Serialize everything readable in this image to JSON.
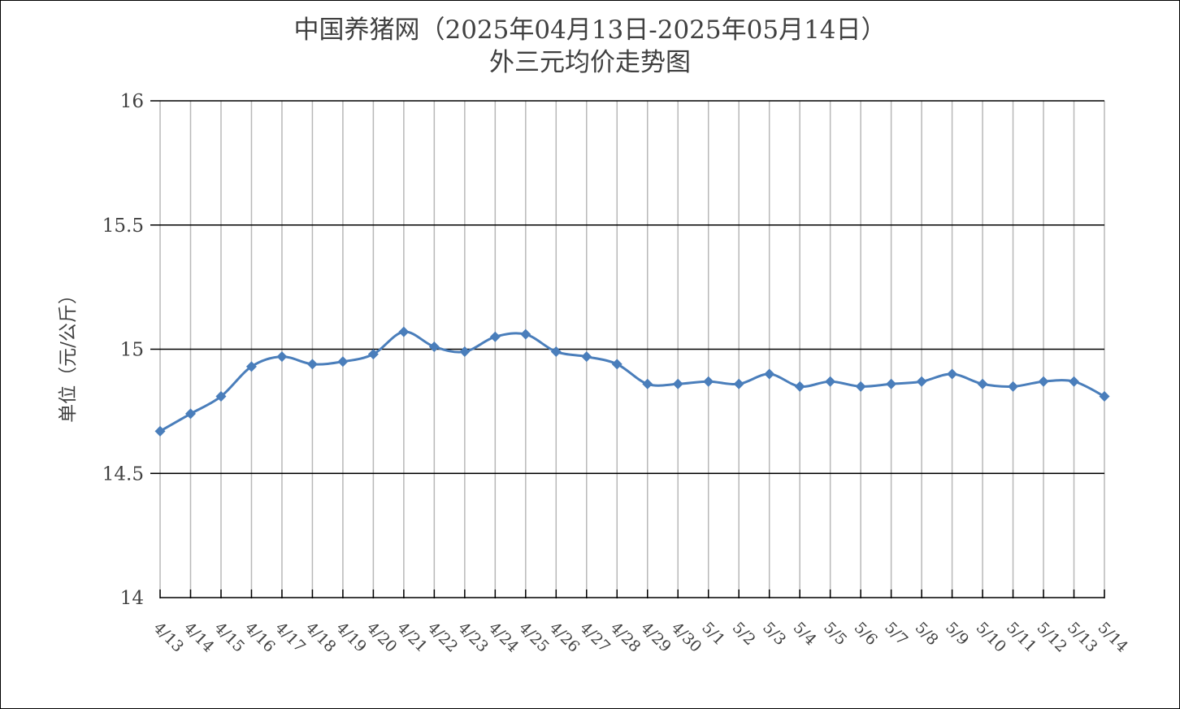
{
  "chart_data": {
    "type": "line",
    "title": [
      "中国养猪网（2025年04月13日-2025年05月14日）",
      "外三元均价走势图"
    ],
    "xlabel": "",
    "ylabel": "单位（元/公斤）",
    "ylim": [
      14,
      16
    ],
    "yticks": [
      "14",
      "14.5",
      "15",
      "15.5",
      "16"
    ],
    "grid": "horizontal major lines and vertical category lines",
    "legend": "none",
    "categories": [
      "4/13",
      "4/14",
      "4/15",
      "4/16",
      "4/17",
      "4/18",
      "4/19",
      "4/20",
      "4/21",
      "4/22",
      "4/23",
      "4/24",
      "4/25",
      "4/26",
      "4/27",
      "4/28",
      "4/29",
      "4/30",
      "5/1",
      "5/2",
      "5/3",
      "5/4",
      "5/5",
      "5/6",
      "5/7",
      "5/8",
      "5/9",
      "5/10",
      "5/11",
      "5/12",
      "5/13",
      "5/14"
    ],
    "series": [
      {
        "values": [
          14.67,
          14.74,
          14.81,
          14.93,
          14.97,
          14.94,
          14.95,
          14.98,
          15.07,
          15.01,
          14.99,
          15.05,
          15.06,
          14.99,
          14.97,
          14.94,
          14.86,
          14.86,
          14.87,
          14.86,
          14.9,
          14.85,
          14.87,
          14.85,
          14.86,
          14.87,
          14.9,
          14.86,
          14.85,
          14.87,
          14.87,
          14.81
        ],
        "color": "#4A7EBB"
      }
    ]
  }
}
